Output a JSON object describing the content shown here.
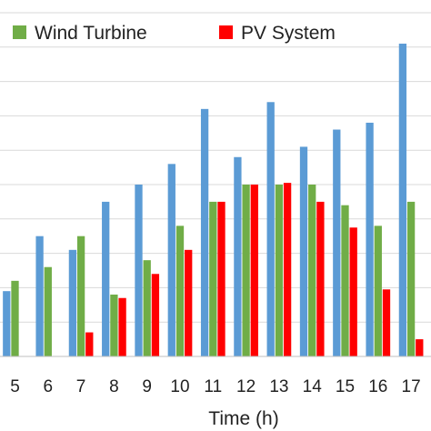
{
  "chart_data": {
    "type": "bar",
    "title": "",
    "xlabel": "Time (h)",
    "ylabel": "",
    "categories": [
      "5",
      "6",
      "7",
      "8",
      "9",
      "10",
      "11",
      "12",
      "13",
      "14",
      "15",
      "16",
      "17"
    ],
    "series": [
      {
        "key": "s0",
        "color": "#5b9bd5",
        "values": [
          1.9,
          3.5,
          3.1,
          4.5,
          5.0,
          5.6,
          7.2,
          5.8,
          7.4,
          6.1,
          6.6,
          6.8,
          9.1
        ]
      },
      {
        "name": "Wind Turbine",
        "key": "s1",
        "color": "#70ad47",
        "values": [
          2.2,
          2.6,
          3.5,
          1.8,
          2.8,
          3.8,
          4.5,
          5.0,
          5.0,
          5.0,
          4.4,
          3.8,
          4.5
        ]
      },
      {
        "name": "PV System",
        "key": "s2",
        "color": "#ff0000",
        "values": [
          0,
          0,
          0.7,
          1.7,
          2.4,
          3.1,
          4.5,
          5.0,
          5.05,
          4.5,
          3.75,
          1.95,
          0.5
        ]
      }
    ],
    "ylim": [
      0,
      10
    ],
    "grid": true,
    "legend_position": "top"
  }
}
